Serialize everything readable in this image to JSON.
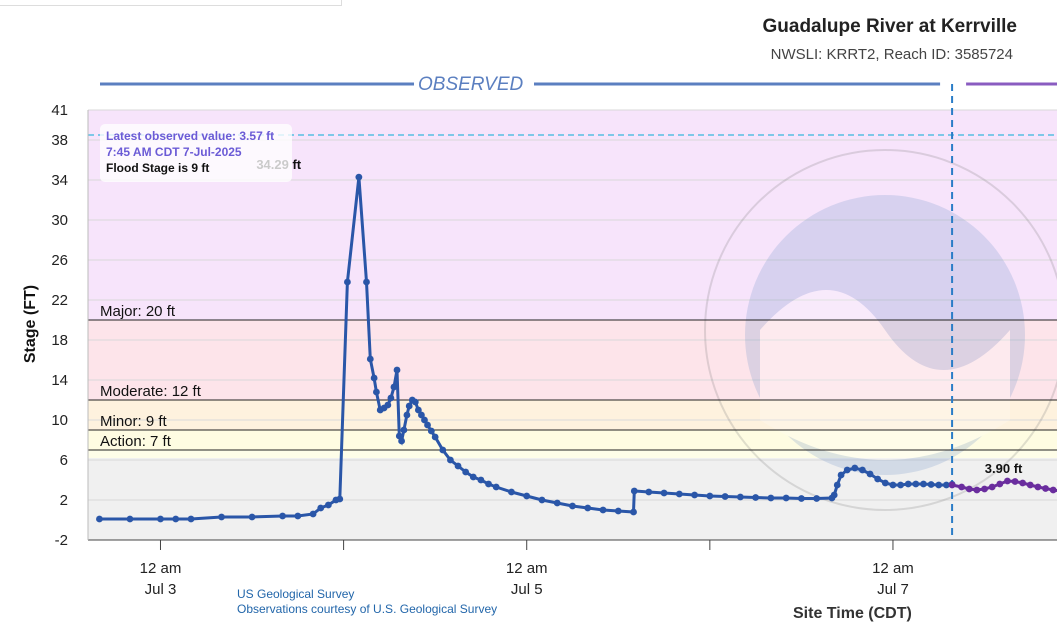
{
  "header": {
    "title": "Guadalupe River at Kerrville",
    "subtitle": "NWSLI: KRRT2, Reach ID: 3585724"
  },
  "observed_label": "OBSERVED",
  "info": {
    "latest": "Latest observed value: 3.57 ft",
    "time": "7:45 AM CDT 7-Jul-2025",
    "flood_stage": "Flood Stage is 9 ft"
  },
  "credits": {
    "line1": "US Geological Survey",
    "line2": "Observations courtesy of U.S. Geological Survey"
  },
  "colors": {
    "observed": "#2a56a8",
    "forecast": "#6a2d9e",
    "major_band": "#fde4ea",
    "moderate_band": "#fde7e4",
    "minor_band": "#fef2de",
    "action_band": "#fefce2",
    "record_band": "#f7e4fb",
    "normal_band": "#f0f0f0"
  },
  "chart_data": {
    "type": "line",
    "title": "Guadalupe River at Kerrville",
    "xlabel": "Site Time (CDT)",
    "ylabel": "Stage (FT)",
    "ylim": [
      -2,
      41
    ],
    "yticks": [
      -2,
      2,
      6,
      10,
      14,
      18,
      22,
      26,
      30,
      34,
      38,
      41
    ],
    "xlim_hours": [
      -9.5,
      117.5
    ],
    "xticks": [
      {
        "hour": 0,
        "label1": "12 am",
        "label2": "Jul 3"
      },
      {
        "hour": 24,
        "label1": "",
        "label2": ""
      },
      {
        "hour": 48,
        "label1": "12 am",
        "label2": "Jul 5"
      },
      {
        "hour": 72,
        "label1": "",
        "label2": ""
      },
      {
        "hour": 96,
        "label1": "12 am",
        "label2": "Jul 7"
      },
      {
        "hour": 120,
        "label1": "",
        "label2": ""
      }
    ],
    "x_axis_note": "hours relative to 12 am Jul 3 (CDT)",
    "thresholds": [
      {
        "name": "Major",
        "label": "Major: 20 ft",
        "value": 20
      },
      {
        "name": "Moderate",
        "label": "Moderate: 12 ft",
        "value": 12
      },
      {
        "name": "Minor",
        "label": "Minor: 9 ft",
        "value": 9
      },
      {
        "name": "Action",
        "label": "Action: 7 ft",
        "value": 7
      }
    ],
    "record_line": 38.5,
    "current_time_hour": 103.75,
    "annotations": [
      {
        "text": "34.29 ft",
        "x": 15.5,
        "y": 34.29
      },
      {
        "text": "3.90 ft",
        "x": 110.5,
        "y": 3.9
      }
    ],
    "series": [
      {
        "name": "Observed",
        "x": [
          -8,
          -4,
          0,
          2,
          4,
          8,
          12,
          16,
          18,
          20,
          21,
          22,
          23,
          23.5,
          24.5,
          26,
          27,
          27.5,
          28,
          28.3,
          28.8,
          29.3,
          29.8,
          30.2,
          30.6,
          31,
          31.3,
          31.6,
          31.9,
          32.3,
          32.6,
          33,
          33.4,
          33.8,
          34.2,
          34.6,
          35,
          35.5,
          36,
          37,
          38,
          39,
          40,
          41,
          42,
          43,
          44,
          46,
          48,
          50,
          52,
          54,
          56,
          58,
          60,
          62,
          62.1,
          64,
          66,
          68,
          70,
          72,
          74,
          76,
          78,
          80,
          82,
          84,
          86,
          88,
          88.3,
          88.7,
          89.2,
          90,
          91,
          92,
          93,
          94,
          95,
          96,
          97,
          98,
          99,
          100,
          101,
          102,
          103,
          103.75
        ],
        "y": [
          0.1,
          0.1,
          0.1,
          0.1,
          0.1,
          0.3,
          0.3,
          0.4,
          0.4,
          0.6,
          1.2,
          1.5,
          2.0,
          2.1,
          23.8,
          34.29,
          23.8,
          16.1,
          14.2,
          12.8,
          11.0,
          11.2,
          11.5,
          12.2,
          13.3,
          15.0,
          8.4,
          7.9,
          9.0,
          10.5,
          11.4,
          12.0,
          11.8,
          11.0,
          10.5,
          10.0,
          9.5,
          8.9,
          8.3,
          7.0,
          6.0,
          5.4,
          4.8,
          4.3,
          4.0,
          3.6,
          3.3,
          2.8,
          2.4,
          2.0,
          1.7,
          1.4,
          1.2,
          1.0,
          0.9,
          0.8,
          2.9,
          2.8,
          2.7,
          2.6,
          2.5,
          2.4,
          2.35,
          2.3,
          2.25,
          2.2,
          2.2,
          2.15,
          2.15,
          2.2,
          2.5,
          3.5,
          4.5,
          5.0,
          5.2,
          5.0,
          4.6,
          4.1,
          3.7,
          3.5,
          3.5,
          3.6,
          3.6,
          3.6,
          3.55,
          3.5,
          3.5,
          3.57
        ]
      },
      {
        "name": "Forecast",
        "x": [
          103.75,
          105,
          106,
          107,
          108,
          109,
          110,
          111,
          112,
          113,
          114,
          115,
          116,
          117,
          118,
          119,
          120,
          121,
          122,
          123,
          124,
          125,
          126,
          127,
          128,
          129,
          130
        ],
        "y": [
          3.5,
          3.3,
          3.1,
          3.0,
          3.1,
          3.3,
          3.6,
          3.9,
          3.85,
          3.7,
          3.5,
          3.3,
          3.15,
          3.0,
          2.9,
          2.8,
          2.7,
          2.6,
          2.55,
          2.5,
          2.45,
          2.4,
          2.35,
          2.3,
          2.3,
          2.25,
          2.2
        ]
      }
    ]
  }
}
